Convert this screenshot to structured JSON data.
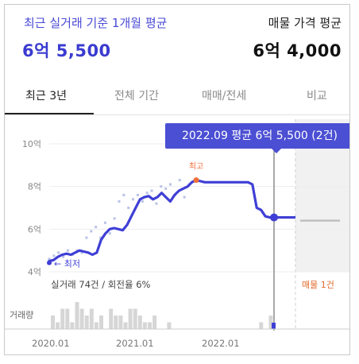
{
  "header": {
    "left_label": "최근 실거래 기준 1개월 평균",
    "left_value": "6억 5,500",
    "right_label": "매물 가격 평균",
    "right_value": "6억 4,000"
  },
  "tabs": [
    {
      "label": "최근 3년",
      "active": true
    },
    {
      "label": "전체 기간",
      "active": false
    },
    {
      "label": "매매/전세",
      "active": false
    },
    {
      "label": "비교",
      "active": false
    }
  ],
  "tooltip": "2022.09 평균 6억 5,500 (2건)",
  "chart_data": {
    "type": "line",
    "y_unit": "억",
    "y_ticks": [
      "10억",
      "8억",
      "6억",
      "4억"
    ],
    "ylim": [
      4,
      10
    ],
    "x_ticks": [
      "2020.01",
      "2021.01",
      "2022.01"
    ],
    "high_label": "최고",
    "low_label": "최저",
    "deal_summary": "실거래 74건 / 회전율 6%",
    "listing_label": "매물 1건",
    "volume_label": "거래량",
    "series": [
      {
        "values": [
          4.5,
          4.55,
          4.7,
          4.8,
          4.85,
          4.8,
          4.9,
          5.0,
          4.95,
          4.9,
          4.8,
          4.9,
          5.5,
          5.8,
          6.0,
          6.05,
          6.0,
          5.95,
          6.2,
          6.6,
          7.0,
          7.4,
          7.5,
          7.55,
          7.4,
          7.5,
          7.7,
          7.5,
          7.3,
          7.6,
          7.8,
          7.9,
          8.0,
          8.2,
          8.3,
          8.25,
          8.2,
          8.2,
          8.2,
          8.2,
          8.2,
          8.2,
          8.2,
          8.2,
          8.2,
          8.2,
          8.2,
          8.1,
          7.0,
          6.9,
          6.6,
          6.55,
          6.55
        ]
      }
    ],
    "scatter_points": [
      4.6,
      4.75,
      4.9,
      4.7,
      5.0,
      4.8,
      5.0,
      4.9,
      5.6,
      5.9,
      6.1,
      5.6,
      6.3,
      5.8,
      6.5,
      7.3,
      7.6,
      7.0,
      7.4,
      7.6,
      7.3,
      7.7,
      7.8,
      7.2,
      8.0,
      7.9,
      8.1,
      7.6,
      8.3,
      7.5,
      8.1
    ],
    "listing_price": 6.4,
    "volume": [
      2,
      1,
      3,
      3,
      1,
      4,
      3,
      2,
      3,
      1,
      2,
      0,
      3,
      2,
      2,
      1,
      3,
      3,
      2,
      1,
      1,
      2,
      0,
      0,
      1,
      0,
      0,
      0,
      0,
      0,
      0,
      0,
      0,
      0,
      0,
      0,
      0,
      0,
      0,
      0,
      0,
      0,
      0,
      1,
      0,
      2
    ]
  },
  "colors": {
    "accent": "#3b3bd0",
    "line": "#3f3fd6",
    "point": "#b8c2e6",
    "high": "#f0703a",
    "listing": "#e06a2c",
    "bar": "#d6d6d6",
    "listing_line": "#bfbfbf"
  }
}
